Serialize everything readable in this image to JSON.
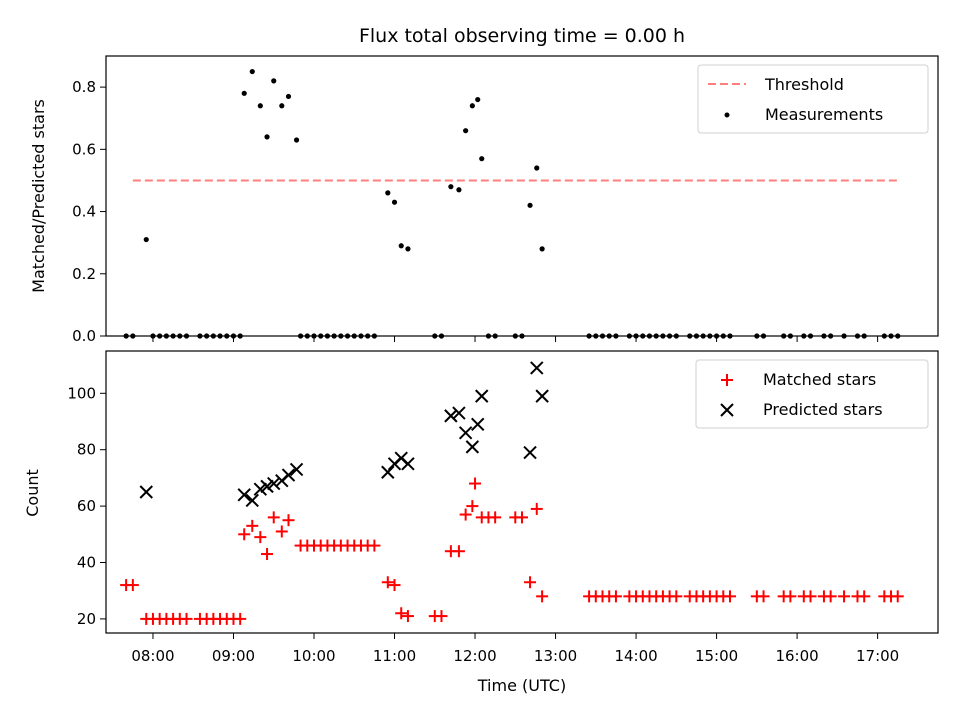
{
  "chart_data": [
    {
      "type": "scatter",
      "title": "Flux total observing time = 0.00 h",
      "xlabel": "",
      "ylabel": "Matched/Predicted stars",
      "ylim": [
        0,
        0.9
      ],
      "yticks": [
        "0.0",
        "0.2",
        "0.4",
        "0.6",
        "0.8"
      ],
      "xlim": [
        "07:25",
        "17:45"
      ],
      "grid": false,
      "legend_position": "top-right",
      "series": [
        {
          "name": "Threshold",
          "kind": "line",
          "style": "dashed",
          "color": "#ff7f7f",
          "points": [
            [
              "07:45",
              0.5
            ],
            [
              "17:15",
              0.5
            ]
          ]
        },
        {
          "name": "Measurements",
          "kind": "scatter",
          "marker": "dot",
          "color": "#000000",
          "points": [
            [
              "07:40",
              0.0
            ],
            [
              "07:45",
              0.0
            ],
            [
              "07:55",
              0.31
            ],
            [
              "08:00",
              0.0
            ],
            [
              "08:05",
              0.0
            ],
            [
              "08:10",
              0.0
            ],
            [
              "08:15",
              0.0
            ],
            [
              "08:20",
              0.0
            ],
            [
              "08:25",
              0.0
            ],
            [
              "08:35",
              0.0
            ],
            [
              "08:40",
              0.0
            ],
            [
              "08:45",
              0.0
            ],
            [
              "08:50",
              0.0
            ],
            [
              "08:55",
              0.0
            ],
            [
              "09:00",
              0.0
            ],
            [
              "09:05",
              0.0
            ],
            [
              "09:08",
              0.78
            ],
            [
              "09:14",
              0.85
            ],
            [
              "09:20",
              0.74
            ],
            [
              "09:25",
              0.64
            ],
            [
              "09:30",
              0.82
            ],
            [
              "09:36",
              0.74
            ],
            [
              "09:41",
              0.77
            ],
            [
              "09:47",
              0.63
            ],
            [
              "09:50",
              0.0
            ],
            [
              "09:55",
              0.0
            ],
            [
              "10:00",
              0.0
            ],
            [
              "10:05",
              0.0
            ],
            [
              "10:10",
              0.0
            ],
            [
              "10:15",
              0.0
            ],
            [
              "10:20",
              0.0
            ],
            [
              "10:25",
              0.0
            ],
            [
              "10:30",
              0.0
            ],
            [
              "10:35",
              0.0
            ],
            [
              "10:40",
              0.0
            ],
            [
              "10:45",
              0.0
            ],
            [
              "10:55",
              0.46
            ],
            [
              "11:00",
              0.43
            ],
            [
              "11:05",
              0.29
            ],
            [
              "11:10",
              0.28
            ],
            [
              "11:30",
              0.0
            ],
            [
              "11:35",
              0.0
            ],
            [
              "11:42",
              0.48
            ],
            [
              "11:48",
              0.47
            ],
            [
              "11:53",
              0.66
            ],
            [
              "11:58",
              0.74
            ],
            [
              "12:02",
              0.76
            ],
            [
              "12:05",
              0.57
            ],
            [
              "12:10",
              0.0
            ],
            [
              "12:15",
              0.0
            ],
            [
              "12:30",
              0.0
            ],
            [
              "12:35",
              0.0
            ],
            [
              "12:41",
              0.42
            ],
            [
              "12:46",
              0.54
            ],
            [
              "12:50",
              0.28
            ],
            [
              "13:25",
              0.0
            ],
            [
              "13:30",
              0.0
            ],
            [
              "13:35",
              0.0
            ],
            [
              "13:40",
              0.0
            ],
            [
              "13:45",
              0.0
            ],
            [
              "13:55",
              0.0
            ],
            [
              "14:00",
              0.0
            ],
            [
              "14:05",
              0.0
            ],
            [
              "14:10",
              0.0
            ],
            [
              "14:15",
              0.0
            ],
            [
              "14:20",
              0.0
            ],
            [
              "14:25",
              0.0
            ],
            [
              "14:30",
              0.0
            ],
            [
              "14:40",
              0.0
            ],
            [
              "14:45",
              0.0
            ],
            [
              "14:50",
              0.0
            ],
            [
              "14:55",
              0.0
            ],
            [
              "15:00",
              0.0
            ],
            [
              "15:05",
              0.0
            ],
            [
              "15:10",
              0.0
            ],
            [
              "15:30",
              0.0
            ],
            [
              "15:35",
              0.0
            ],
            [
              "15:50",
              0.0
            ],
            [
              "15:55",
              0.0
            ],
            [
              "16:05",
              0.0
            ],
            [
              "16:10",
              0.0
            ],
            [
              "16:20",
              0.0
            ],
            [
              "16:25",
              0.0
            ],
            [
              "16:35",
              0.0
            ],
            [
              "16:45",
              0.0
            ],
            [
              "16:50",
              0.0
            ],
            [
              "17:05",
              0.0
            ],
            [
              "17:10",
              0.0
            ],
            [
              "17:15",
              0.0
            ]
          ]
        }
      ]
    },
    {
      "type": "scatter",
      "title": "",
      "xlabel": "Time (UTC)",
      "ylabel": "Count",
      "ylim": [
        15,
        115
      ],
      "yticks": [
        "20",
        "40",
        "60",
        "80",
        "100"
      ],
      "xlim": [
        "07:25",
        "17:45"
      ],
      "xticks": [
        "08:00",
        "09:00",
        "10:00",
        "11:00",
        "12:00",
        "13:00",
        "14:00",
        "15:00",
        "16:00",
        "17:00"
      ],
      "grid": false,
      "legend_position": "top-right",
      "series": [
        {
          "name": "Matched stars",
          "kind": "scatter",
          "marker": "plus",
          "color": "#ff0000",
          "points": [
            [
              "07:40",
              32
            ],
            [
              "07:45",
              32
            ],
            [
              "07:55",
              20
            ],
            [
              "08:00",
              20
            ],
            [
              "08:05",
              20
            ],
            [
              "08:10",
              20
            ],
            [
              "08:15",
              20
            ],
            [
              "08:20",
              20
            ],
            [
              "08:25",
              20
            ],
            [
              "08:35",
              20
            ],
            [
              "08:40",
              20
            ],
            [
              "08:45",
              20
            ],
            [
              "08:50",
              20
            ],
            [
              "08:55",
              20
            ],
            [
              "09:00",
              20
            ],
            [
              "09:05",
              20
            ],
            [
              "09:08",
              50
            ],
            [
              "09:14",
              53
            ],
            [
              "09:20",
              49
            ],
            [
              "09:25",
              43
            ],
            [
              "09:30",
              56
            ],
            [
              "09:36",
              51
            ],
            [
              "09:41",
              55
            ],
            [
              "09:50",
              46
            ],
            [
              "09:55",
              46
            ],
            [
              "10:00",
              46
            ],
            [
              "10:05",
              46
            ],
            [
              "10:10",
              46
            ],
            [
              "10:15",
              46
            ],
            [
              "10:20",
              46
            ],
            [
              "10:25",
              46
            ],
            [
              "10:30",
              46
            ],
            [
              "10:35",
              46
            ],
            [
              "10:40",
              46
            ],
            [
              "10:45",
              46
            ],
            [
              "10:55",
              33
            ],
            [
              "11:00",
              32
            ],
            [
              "11:05",
              22
            ],
            [
              "11:10",
              21
            ],
            [
              "11:30",
              21
            ],
            [
              "11:35",
              21
            ],
            [
              "11:42",
              44
            ],
            [
              "11:48",
              44
            ],
            [
              "11:53",
              57
            ],
            [
              "11:58",
              60
            ],
            [
              "12:00",
              68
            ],
            [
              "12:05",
              56
            ],
            [
              "12:10",
              56
            ],
            [
              "12:15",
              56
            ],
            [
              "12:30",
              56
            ],
            [
              "12:35",
              56
            ],
            [
              "12:41",
              33
            ],
            [
              "12:46",
              59
            ],
            [
              "12:50",
              28
            ],
            [
              "13:25",
              28
            ],
            [
              "13:30",
              28
            ],
            [
              "13:35",
              28
            ],
            [
              "13:40",
              28
            ],
            [
              "13:45",
              28
            ],
            [
              "13:55",
              28
            ],
            [
              "14:00",
              28
            ],
            [
              "14:05",
              28
            ],
            [
              "14:10",
              28
            ],
            [
              "14:15",
              28
            ],
            [
              "14:20",
              28
            ],
            [
              "14:25",
              28
            ],
            [
              "14:30",
              28
            ],
            [
              "14:40",
              28
            ],
            [
              "14:45",
              28
            ],
            [
              "14:50",
              28
            ],
            [
              "14:55",
              28
            ],
            [
              "15:00",
              28
            ],
            [
              "15:05",
              28
            ],
            [
              "15:10",
              28
            ],
            [
              "15:30",
              28
            ],
            [
              "15:35",
              28
            ],
            [
              "15:50",
              28
            ],
            [
              "15:55",
              28
            ],
            [
              "16:05",
              28
            ],
            [
              "16:10",
              28
            ],
            [
              "16:20",
              28
            ],
            [
              "16:25",
              28
            ],
            [
              "16:35",
              28
            ],
            [
              "16:45",
              28
            ],
            [
              "16:50",
              28
            ],
            [
              "17:05",
              28
            ],
            [
              "17:10",
              28
            ],
            [
              "17:15",
              28
            ]
          ]
        },
        {
          "name": "Predicted stars",
          "kind": "scatter",
          "marker": "x",
          "color": "#000000",
          "points": [
            [
              "07:55",
              65
            ],
            [
              "09:08",
              64
            ],
            [
              "09:14",
              62
            ],
            [
              "09:20",
              66
            ],
            [
              "09:25",
              67
            ],
            [
              "09:30",
              68
            ],
            [
              "09:36",
              69
            ],
            [
              "09:41",
              71
            ],
            [
              "09:47",
              73
            ],
            [
              "10:55",
              72
            ],
            [
              "11:00",
              75
            ],
            [
              "11:05",
              77
            ],
            [
              "11:10",
              75
            ],
            [
              "11:42",
              92
            ],
            [
              "11:48",
              93
            ],
            [
              "11:53",
              86
            ],
            [
              "11:58",
              81
            ],
            [
              "12:02",
              89
            ],
            [
              "12:05",
              99
            ],
            [
              "12:41",
              79
            ],
            [
              "12:46",
              109
            ],
            [
              "12:50",
              99
            ]
          ]
        }
      ]
    }
  ]
}
